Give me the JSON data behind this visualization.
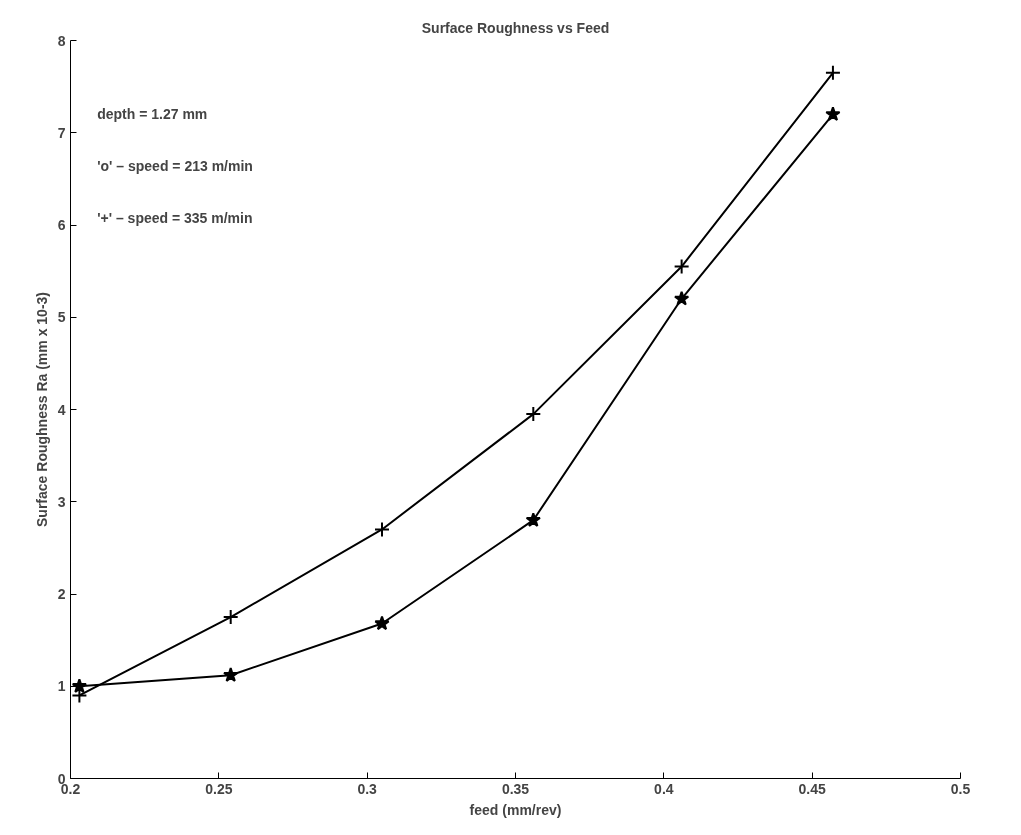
{
  "chart_data": {
    "type": "line",
    "title": "Surface Roughness vs Feed",
    "xlabel": "feed (mm/rev)",
    "ylabel": "Surface Roughness Ra (mm x 10-3)",
    "x": [
      0.203,
      0.254,
      0.305,
      0.356,
      0.406,
      0.457
    ],
    "series": [
      {
        "color": "#000000",
        "marker": "cross",
        "values": [
          0.9,
          1.75,
          2.7,
          3.95,
          5.55,
          7.65
        ]
      },
      {
        "color": "#000000",
        "marker": "star",
        "values": [
          1.0,
          1.12,
          1.68,
          2.8,
          5.2,
          7.2
        ]
      }
    ],
    "xlim": [
      0.2,
      0.5
    ],
    "xticks": [
      0.2,
      0.25,
      0.3,
      0.35,
      0.4,
      0.45,
      0.5
    ],
    "ylim": [
      0,
      8
    ],
    "yticks": [
      0,
      1,
      2,
      3,
      4,
      5,
      6,
      7,
      8
    ],
    "grid": false,
    "annotations": [
      "depth = 1.27 mm",
      "'o' – speed = 213 m/min",
      "'+' – speed = 335 m/min"
    ]
  }
}
